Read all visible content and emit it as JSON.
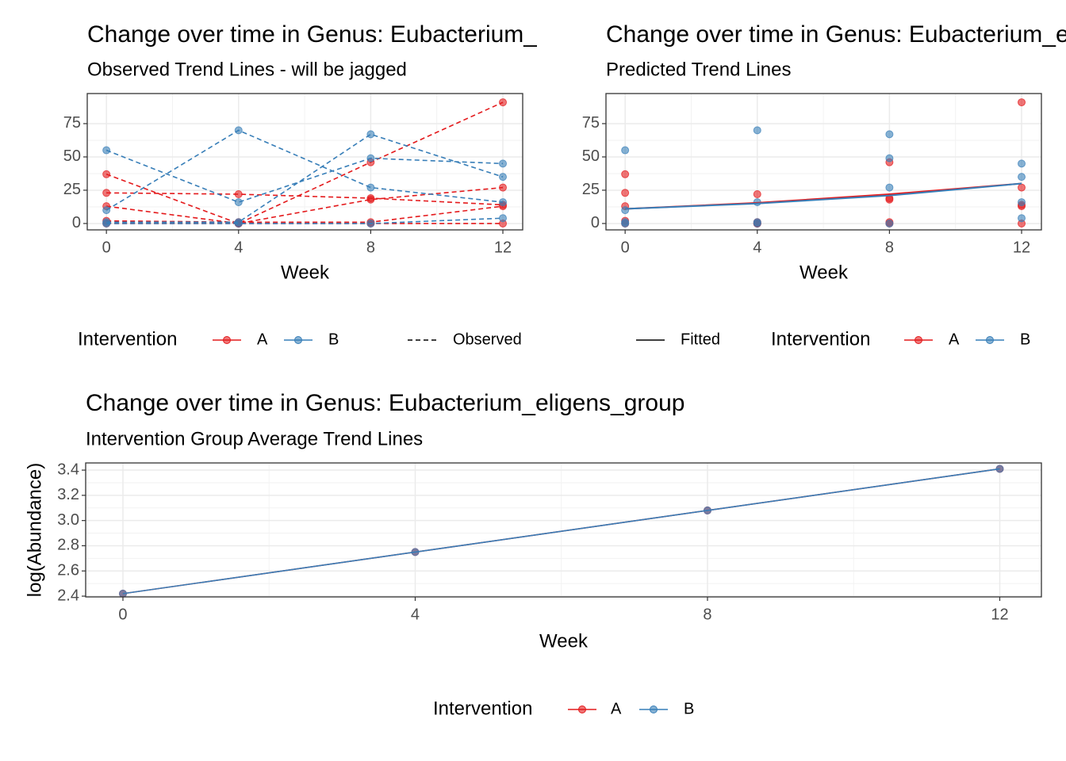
{
  "chart_data": [
    {
      "type": "line",
      "title": "Change over time in Genus: Eubacterium_eligens_group",
      "subtitle": "Observed Trend Lines - will be jagged",
      "x_label": "Week",
      "x": [
        0,
        4,
        8,
        12
      ],
      "xlim": [
        -0.58,
        12.6
      ],
      "xticks": [
        0,
        4,
        8,
        12
      ],
      "ylim": [
        -4.8,
        97.6
      ],
      "yticks": [
        0,
        25,
        50,
        75
      ],
      "grid": true,
      "legend_title": "Intervention",
      "line_label": "Observed",
      "groups": [
        {
          "name": "A",
          "color": "#e41a1c",
          "subjects": [
            [
              37,
              0,
              46,
              91
            ],
            [
              23,
              22,
              19,
              14
            ],
            [
              13,
              0,
              18,
              27
            ],
            [
              2,
              1,
              1,
              13
            ],
            [
              0,
              0,
              0,
              0
            ]
          ]
        },
        {
          "name": "B",
          "color": "#377eb8",
          "subjects": [
            [
              55,
              16,
              49,
              45
            ],
            [
              10,
              70,
              27,
              16
            ],
            [
              1,
              1,
              67,
              35
            ],
            [
              0,
              0,
              0,
              4
            ]
          ]
        }
      ]
    },
    {
      "type": "scatter",
      "title": "Change over time in Genus: Eubacterium_eligens_group",
      "subtitle": "Predicted Trend Lines",
      "x_label": "Week",
      "x": [
        0,
        4,
        8,
        12
      ],
      "xlim": [
        -0.58,
        12.6
      ],
      "xticks": [
        0,
        4,
        8,
        12
      ],
      "ylim": [
        -4.8,
        97.6
      ],
      "yticks": [
        0,
        25,
        50,
        75
      ],
      "grid": true,
      "legend_title": "Intervention",
      "fit_label": "Fitted",
      "groups": [
        {
          "name": "A",
          "color": "#e41a1c",
          "subjects": [
            [
              37,
              0,
              46,
              91
            ],
            [
              23,
              22,
              19,
              14
            ],
            [
              13,
              0,
              18,
              27
            ],
            [
              2,
              1,
              1,
              13
            ],
            [
              0,
              0,
              0,
              0
            ]
          ],
          "fitted": [
            11,
            15.5,
            22,
            30
          ]
        },
        {
          "name": "B",
          "color": "#377eb8",
          "subjects": [
            [
              55,
              16,
              49,
              45
            ],
            [
              10,
              70,
              27,
              16
            ],
            [
              1,
              1,
              67,
              35
            ],
            [
              0,
              0,
              0,
              4
            ]
          ],
          "fitted": [
            11,
            15,
            21,
            30
          ]
        }
      ]
    },
    {
      "type": "line",
      "title": "Change over time in Genus: Eubacterium_eligens_group",
      "subtitle": "Intervention Group Average Trend Lines",
      "x_label": "Week",
      "y_label": "log(Abundance)",
      "x": [
        0,
        4,
        8,
        12
      ],
      "xlim": [
        -0.51,
        12.57
      ],
      "xticks": [
        0,
        4,
        8,
        12
      ],
      "ylim": [
        2.394,
        3.457
      ],
      "yticks": [
        2.4,
        2.6,
        2.8,
        {
          "value": 3,
          "label": "3.0"
        },
        3.2,
        3.4
      ],
      "grid": true,
      "legend_title": "Intervention",
      "series": [
        {
          "name": "A",
          "color": "#e41a1c",
          "values": [
            2.42,
            2.75,
            3.08,
            3.41
          ]
        },
        {
          "name": "B",
          "color": "#377eb8",
          "values": [
            2.42,
            2.75,
            3.08,
            3.41
          ]
        }
      ]
    }
  ]
}
